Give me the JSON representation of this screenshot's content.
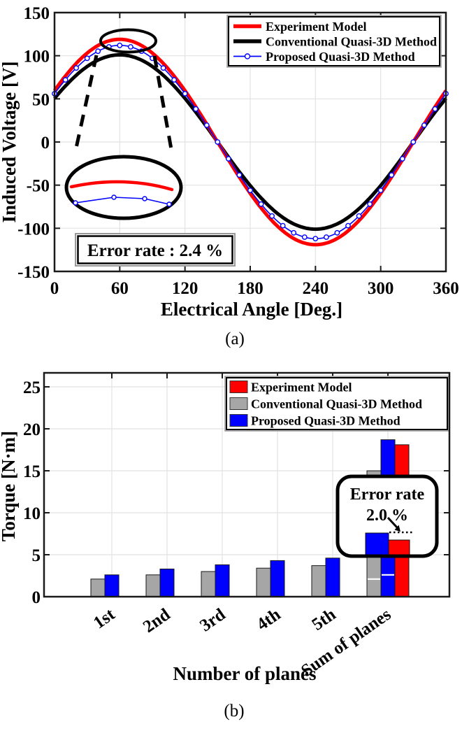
{
  "figure": {
    "captions": {
      "a": "(a)",
      "b": "(b)"
    },
    "colors": {
      "experiment_red": "#FF0000",
      "conventional_black": "#000000",
      "conventional_gray": "#A6A6A6",
      "proposed_blue": "#0000FF",
      "grid": "#E2E2E2",
      "spine": "#1A1A1A"
    }
  },
  "chart_data": [
    {
      "panel": "a",
      "type": "line",
      "xlabel": "Electrical Angle [Deg.]",
      "ylabel": "Induced Voltage [V]",
      "xlim": [
        0,
        360
      ],
      "ylim": [
        -150,
        150
      ],
      "xticks": [
        0,
        60,
        120,
        180,
        240,
        300,
        360
      ],
      "yticks": [
        150,
        100,
        50,
        0,
        -50,
        -100,
        -150
      ],
      "grid": true,
      "legend_position": "upper right",
      "series": [
        {
          "name": "Experiment Model",
          "color": "#FF0000",
          "amplitude": 119,
          "phase_deg": 30,
          "linewidth": 5,
          "marker": "none"
        },
        {
          "name": "Conventional Quasi-3D Method",
          "color": "#000000",
          "amplitude": 101,
          "phase_deg": 30,
          "linewidth": 5,
          "marker": "none"
        },
        {
          "name": "Proposed Quasi-3D Method",
          "color": "#0000FF",
          "amplitude": 112,
          "phase_deg": 30,
          "linewidth": 1.6,
          "marker": "circle",
          "marker_step_deg": 10
        }
      ],
      "annotation": {
        "error_rate_label": "Error rate : 2.4 %"
      }
    },
    {
      "panel": "b",
      "type": "bar",
      "xlabel": "Number of planes",
      "ylabel": "Torque [N·m]",
      "ylim": [
        0,
        25
      ],
      "yticks": [
        0,
        5,
        10,
        15,
        20,
        25
      ],
      "categories": [
        "1st",
        "2nd",
        "3rd",
        "4th",
        "5th",
        "Sum of planes"
      ],
      "grid": true,
      "legend_position": "upper right",
      "series": [
        {
          "name": "Experiment Model",
          "color": "#FF0000",
          "slot": 2,
          "values": [
            null,
            null,
            null,
            null,
            null,
            18.1
          ]
        },
        {
          "name": "Conventional Quasi-3D Method",
          "color": "#A6A6A6",
          "slot": 0,
          "values": [
            2.1,
            2.6,
            3.0,
            3.4,
            3.7,
            15.0
          ],
          "sum_bar_separators": [
            2.1,
            4.7,
            7.7,
            11.1
          ]
        },
        {
          "name": "Proposed Quasi-3D Method",
          "color": "#0000FF",
          "slot": 1,
          "values": [
            2.6,
            3.3,
            3.8,
            4.3,
            4.6,
            18.7
          ],
          "sum_bar_separators": [
            2.6,
            5.9,
            9.7,
            14.0
          ]
        }
      ],
      "annotation": {
        "line1": "Error rate",
        "line2": "2.0 %"
      }
    }
  ]
}
